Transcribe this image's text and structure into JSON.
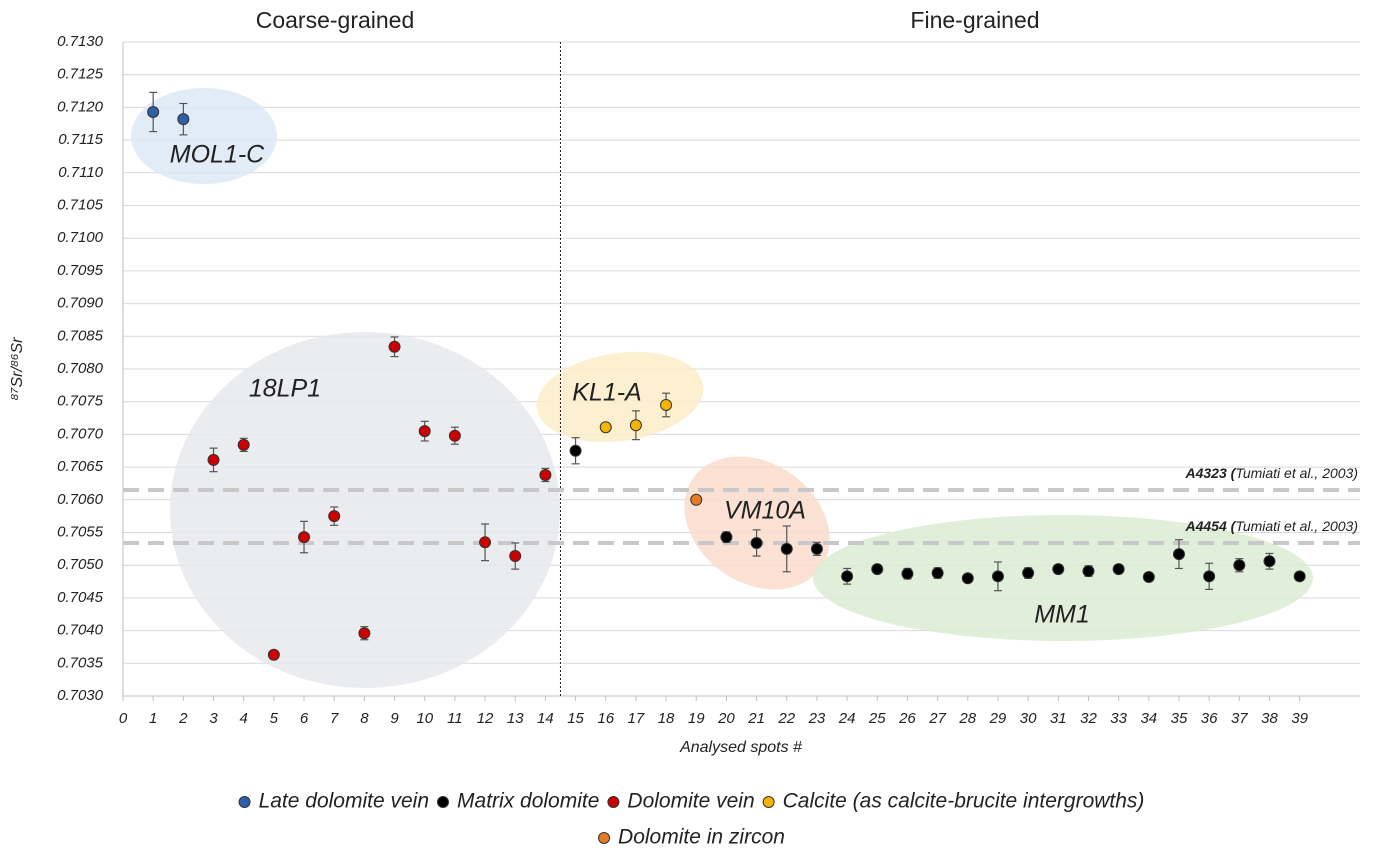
{
  "chart_data": {
    "type": "scatter",
    "xlabel": "Analysed spots #",
    "ylabel": "⁸⁷Sr/⁸⁶Sr",
    "sections": [
      "Coarse-grained",
      "Fine-grained"
    ],
    "section_divider_x": 14.5,
    "xlim": [
      0,
      41
    ],
    "xticks": [
      0,
      1,
      2,
      3,
      4,
      5,
      6,
      7,
      8,
      9,
      10,
      11,
      12,
      13,
      14,
      15,
      16,
      17,
      18,
      19,
      20,
      21,
      22,
      23,
      24,
      25,
      26,
      27,
      28,
      29,
      30,
      31,
      32,
      33,
      34,
      35,
      36,
      37,
      38,
      39
    ],
    "ylim": [
      0.703,
      0.713
    ],
    "yticks": [
      {
        "value": 0.703,
        "label": "0.7030"
      },
      0.7035,
      {
        "value": 0.704,
        "label": "0.7040"
      },
      0.7045,
      {
        "value": 0.705,
        "label": "0.7050"
      },
      0.7055,
      {
        "value": 0.706,
        "label": "0.7060"
      },
      0.7065,
      {
        "value": 0.707,
        "label": "0.7070"
      },
      0.7075,
      {
        "value": 0.708,
        "label": "0.7080"
      },
      0.7085,
      {
        "value": 0.709,
        "label": "0.7090"
      },
      0.7095,
      {
        "value": 0.71,
        "label": "0.7100"
      },
      0.7105,
      {
        "value": 0.711,
        "label": "0.7110"
      },
      0.7115,
      {
        "value": 0.712,
        "label": "0.7120"
      },
      0.7125,
      {
        "value": 0.713,
        "label": "0.7130"
      }
    ],
    "grid": true,
    "annotations": [
      "MOL1-C",
      "18LP1",
      "KL1-A",
      "VM10A",
      "MM1"
    ],
    "reference_lines": [
      {
        "value": 0.70615,
        "sample": "A4323 (",
        "reference": "Tumiati et al., 2003)"
      },
      {
        "value": 0.70534,
        "sample": "A4454 (",
        "reference": "Tumiati et al., 2003)"
      }
    ],
    "series": [
      {
        "name": "Late dolomite vein",
        "color": "#2e5fa8",
        "x": [
          1,
          2
        ],
        "values": [
          0.71193,
          0.71182
        ],
        "errors": [
          0.0003,
          0.00024
        ]
      },
      {
        "name": "Matrix dolomite",
        "color": "#000000",
        "x": [
          15,
          20,
          21,
          22,
          23,
          24,
          25,
          26,
          27,
          28,
          29,
          30,
          31,
          32,
          33,
          34,
          35,
          36,
          37,
          38,
          39
        ],
        "values": [
          0.70675,
          0.70543,
          0.70534,
          0.70525,
          0.70525,
          0.70483,
          0.70494,
          0.70487,
          0.70488,
          0.7048,
          0.70483,
          0.70488,
          0.70494,
          0.70491,
          0.70494,
          0.70482,
          0.70517,
          0.70483,
          0.705,
          0.70506,
          0.70483
        ],
        "errors": [
          0.0002,
          8e-05,
          0.0002,
          0.00035,
          0.0001,
          0.00012,
          5e-05,
          8e-05,
          8e-05,
          5e-05,
          0.00022,
          8e-05,
          6e-05,
          8e-05,
          6e-05,
          6e-05,
          0.00022,
          0.0002,
          0.0001,
          0.00012,
          4e-05
        ]
      },
      {
        "name": "Dolomite vein",
        "color": "#cc0000",
        "x": [
          3,
          4,
          5,
          6,
          7,
          8,
          9,
          10,
          11,
          12,
          13,
          14
        ],
        "values": [
          0.70661,
          0.70684,
          0.70363,
          0.70543,
          0.70575,
          0.70396,
          0.70834,
          0.70705,
          0.70698,
          0.70535,
          0.70514,
          0.70638
        ],
        "errors": [
          0.00018,
          0.0001,
          6e-05,
          0.00024,
          0.00014,
          0.0001,
          0.00015,
          0.00015,
          0.00013,
          0.00028,
          0.0002,
          0.0001
        ]
      },
      {
        "name": "Calcite (as calcite-brucite intergrowths)",
        "color": "#f5b400",
        "x": [
          16,
          17,
          18
        ],
        "values": [
          0.70711,
          0.70714,
          0.70745
        ],
        "errors": [
          6e-05,
          0.00022,
          0.00018
        ]
      },
      {
        "name": "Dolomite in zircon",
        "color": "#e57b27",
        "x": [
          19
        ],
        "values": [
          0.706
        ],
        "errors": [
          6e-05
        ]
      }
    ]
  }
}
